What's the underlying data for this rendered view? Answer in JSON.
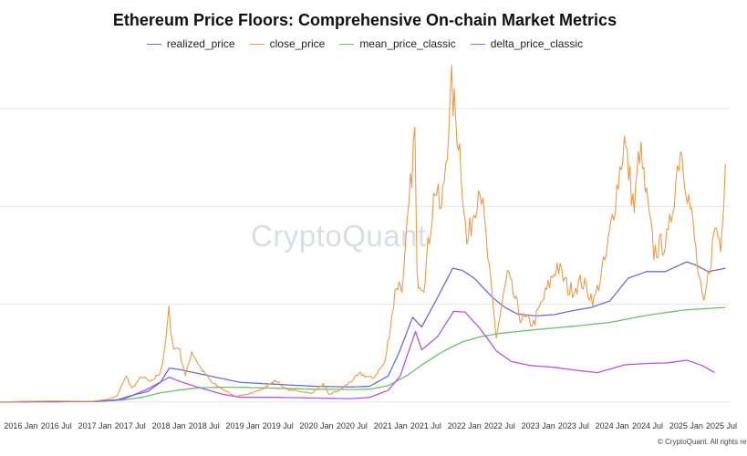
{
  "chart_data": {
    "type": "line",
    "title": "Ethereum Price Floors: Comprehensive On-chain Market Metrics",
    "watermark": "CryptoQuant",
    "copyright": "© CryptoQuant. All rights re",
    "x_tick_labels": [
      "2016 Jan",
      "2016 Jul",
      "2017 Jan",
      "2017 Jul",
      "2018 Jan",
      "2018 Jul",
      "2019 Jan",
      "2019 Jul",
      "2020 Jan",
      "2020 Jul",
      "2021 Jan",
      "2021 Jul",
      "2022 Jan",
      "2022 Jul",
      "2023 Jan",
      "2023 Jul",
      "2024 Jan",
      "2024 Jul",
      "2025 Jan",
      "2025 Jul"
    ],
    "xlim": [
      "2015-10-01",
      "2025-08-15"
    ],
    "ylim": [
      -200,
      5300
    ],
    "grid": true,
    "legend_position": "top-center",
    "series": [
      {
        "name": "realized_price",
        "color": "#6e6bd6",
        "points": [
          [
            "2015-10-01",
            1
          ],
          [
            "2016-06-01",
            3
          ],
          [
            "2017-01-01",
            5
          ],
          [
            "2017-05-01",
            30
          ],
          [
            "2017-07-01",
            90
          ],
          [
            "2017-10-01",
            160
          ],
          [
            "2017-12-01",
            300
          ],
          [
            "2018-01-15",
            520
          ],
          [
            "2018-03-01",
            500
          ],
          [
            "2018-06-01",
            440
          ],
          [
            "2018-10-01",
            360
          ],
          [
            "2019-01-01",
            300
          ],
          [
            "2019-07-01",
            270
          ],
          [
            "2020-01-01",
            240
          ],
          [
            "2020-07-01",
            230
          ],
          [
            "2020-10-01",
            240
          ],
          [
            "2021-01-01",
            400
          ],
          [
            "2021-03-01",
            800
          ],
          [
            "2021-05-01",
            1300
          ],
          [
            "2021-06-15",
            1150
          ],
          [
            "2021-09-01",
            1600
          ],
          [
            "2021-11-15",
            2050
          ],
          [
            "2022-01-01",
            2020
          ],
          [
            "2022-03-01",
            1900
          ],
          [
            "2022-06-01",
            1600
          ],
          [
            "2022-08-01",
            1450
          ],
          [
            "2022-10-01",
            1350
          ],
          [
            "2023-01-01",
            1320
          ],
          [
            "2023-04-01",
            1340
          ],
          [
            "2023-07-01",
            1400
          ],
          [
            "2023-10-01",
            1450
          ],
          [
            "2024-01-01",
            1550
          ],
          [
            "2024-04-01",
            1900
          ],
          [
            "2024-07-01",
            2000
          ],
          [
            "2024-10-01",
            2000
          ],
          [
            "2025-01-15",
            2150
          ],
          [
            "2025-03-01",
            2100
          ],
          [
            "2025-05-01",
            2000
          ],
          [
            "2025-07-25",
            2050
          ]
        ]
      },
      {
        "name": "close_price",
        "color": "#ef9a48",
        "points": [
          [
            "2015-10-01",
            1
          ],
          [
            "2016-03-01",
            10
          ],
          [
            "2016-06-15",
            14
          ],
          [
            "2017-01-01",
            9
          ],
          [
            "2017-03-15",
            40
          ],
          [
            "2017-05-01",
            90
          ],
          [
            "2017-06-15",
            390
          ],
          [
            "2017-07-15",
            210
          ],
          [
            "2017-09-01",
            390
          ],
          [
            "2017-10-15",
            300
          ],
          [
            "2017-12-01",
            460
          ],
          [
            "2017-12-20",
            720
          ],
          [
            "2018-01-13",
            1390
          ],
          [
            "2018-02-05",
            800
          ],
          [
            "2018-03-01",
            860
          ],
          [
            "2018-04-05",
            390
          ],
          [
            "2018-05-05",
            780
          ],
          [
            "2018-06-20",
            510
          ],
          [
            "2018-08-15",
            290
          ],
          [
            "2018-11-20",
            110
          ],
          [
            "2018-12-15",
            90
          ],
          [
            "2019-03-01",
            130
          ],
          [
            "2019-05-15",
            250
          ],
          [
            "2019-06-26",
            330
          ],
          [
            "2019-08-15",
            190
          ],
          [
            "2019-10-15",
            170
          ],
          [
            "2019-12-15",
            130
          ],
          [
            "2020-02-14",
            270
          ],
          [
            "2020-03-13",
            110
          ],
          [
            "2020-05-15",
            200
          ],
          [
            "2020-08-15",
            430
          ],
          [
            "2020-10-15",
            360
          ],
          [
            "2020-12-15",
            600
          ],
          [
            "2021-02-10",
            1800
          ],
          [
            "2021-03-15",
            1800
          ],
          [
            "2021-05-12",
            4150
          ],
          [
            "2021-05-23",
            1900
          ],
          [
            "2021-06-25",
            1800
          ],
          [
            "2021-08-20",
            3300
          ],
          [
            "2021-09-20",
            2900
          ],
          [
            "2021-11-10",
            4800
          ],
          [
            "2021-12-20",
            3900
          ],
          [
            "2022-01-24",
            2400
          ],
          [
            "2022-03-30",
            3400
          ],
          [
            "2022-05-15",
            2000
          ],
          [
            "2022-06-18",
            1000
          ],
          [
            "2022-08-13",
            1950
          ],
          [
            "2022-10-15",
            1300
          ],
          [
            "2022-12-20",
            1200
          ],
          [
            "2023-02-15",
            1650
          ],
          [
            "2023-04-15",
            2100
          ],
          [
            "2023-06-15",
            1700
          ],
          [
            "2023-08-15",
            1850
          ],
          [
            "2023-10-15",
            1550
          ],
          [
            "2023-12-15",
            2250
          ],
          [
            "2024-03-12",
            4000
          ],
          [
            "2024-05-01",
            2950
          ],
          [
            "2024-05-27",
            3900
          ],
          [
            "2024-08-05",
            2300
          ],
          [
            "2024-10-15",
            2500
          ],
          [
            "2024-12-15",
            3950
          ],
          [
            "2025-02-15",
            2700
          ],
          [
            "2025-03-15",
            1900
          ],
          [
            "2025-04-09",
            1450
          ],
          [
            "2025-06-05",
            2700
          ],
          [
            "2025-07-01",
            2450
          ],
          [
            "2025-07-25",
            3650
          ]
        ]
      },
      {
        "name": "mean_price_classic",
        "color": "#6cc06c",
        "points": [
          [
            "2015-10-01",
            1
          ],
          [
            "2017-01-01",
            4
          ],
          [
            "2017-06-01",
            30
          ],
          [
            "2017-09-01",
            70
          ],
          [
            "2017-12-01",
            140
          ],
          [
            "2018-03-01",
            180
          ],
          [
            "2018-06-01",
            215
          ],
          [
            "2018-10-01",
            225
          ],
          [
            "2019-01-01",
            225
          ],
          [
            "2019-07-01",
            210
          ],
          [
            "2020-01-01",
            195
          ],
          [
            "2020-07-01",
            190
          ],
          [
            "2020-10-01",
            195
          ],
          [
            "2021-01-01",
            250
          ],
          [
            "2021-04-01",
            400
          ],
          [
            "2021-07-01",
            600
          ],
          [
            "2021-10-01",
            780
          ],
          [
            "2022-01-01",
            920
          ],
          [
            "2022-04-01",
            1000
          ],
          [
            "2022-07-01",
            1050
          ],
          [
            "2023-01-01",
            1110
          ],
          [
            "2023-07-01",
            1160
          ],
          [
            "2024-01-01",
            1220
          ],
          [
            "2024-07-01",
            1330
          ],
          [
            "2025-01-01",
            1410
          ],
          [
            "2025-07-25",
            1450
          ]
        ]
      },
      {
        "name": "delta_price_classic",
        "color": "#b755e6",
        "points": [
          [
            "2015-10-01",
            1
          ],
          [
            "2017-01-01",
            5
          ],
          [
            "2017-06-01",
            40
          ],
          [
            "2017-10-01",
            200
          ],
          [
            "2018-01-15",
            380
          ],
          [
            "2018-03-01",
            320
          ],
          [
            "2018-06-01",
            230
          ],
          [
            "2018-10-01",
            120
          ],
          [
            "2019-01-01",
            70
          ],
          [
            "2019-07-01",
            70
          ],
          [
            "2020-01-01",
            60
          ],
          [
            "2020-07-01",
            50
          ],
          [
            "2020-10-01",
            70
          ],
          [
            "2021-01-01",
            180
          ],
          [
            "2021-03-01",
            400
          ],
          [
            "2021-05-15",
            1080
          ],
          [
            "2021-06-15",
            800
          ],
          [
            "2021-09-01",
            1000
          ],
          [
            "2021-11-20",
            1390
          ],
          [
            "2022-01-15",
            1380
          ],
          [
            "2022-04-01",
            1120
          ],
          [
            "2022-06-20",
            780
          ],
          [
            "2022-09-01",
            620
          ],
          [
            "2022-12-01",
            560
          ],
          [
            "2023-04-01",
            530
          ],
          [
            "2023-08-01",
            480
          ],
          [
            "2023-11-01",
            450
          ],
          [
            "2024-03-15",
            570
          ],
          [
            "2024-07-01",
            590
          ],
          [
            "2024-10-15",
            600
          ],
          [
            "2025-01-15",
            640
          ],
          [
            "2025-04-01",
            560
          ],
          [
            "2025-06-01",
            450
          ]
        ]
      }
    ]
  }
}
